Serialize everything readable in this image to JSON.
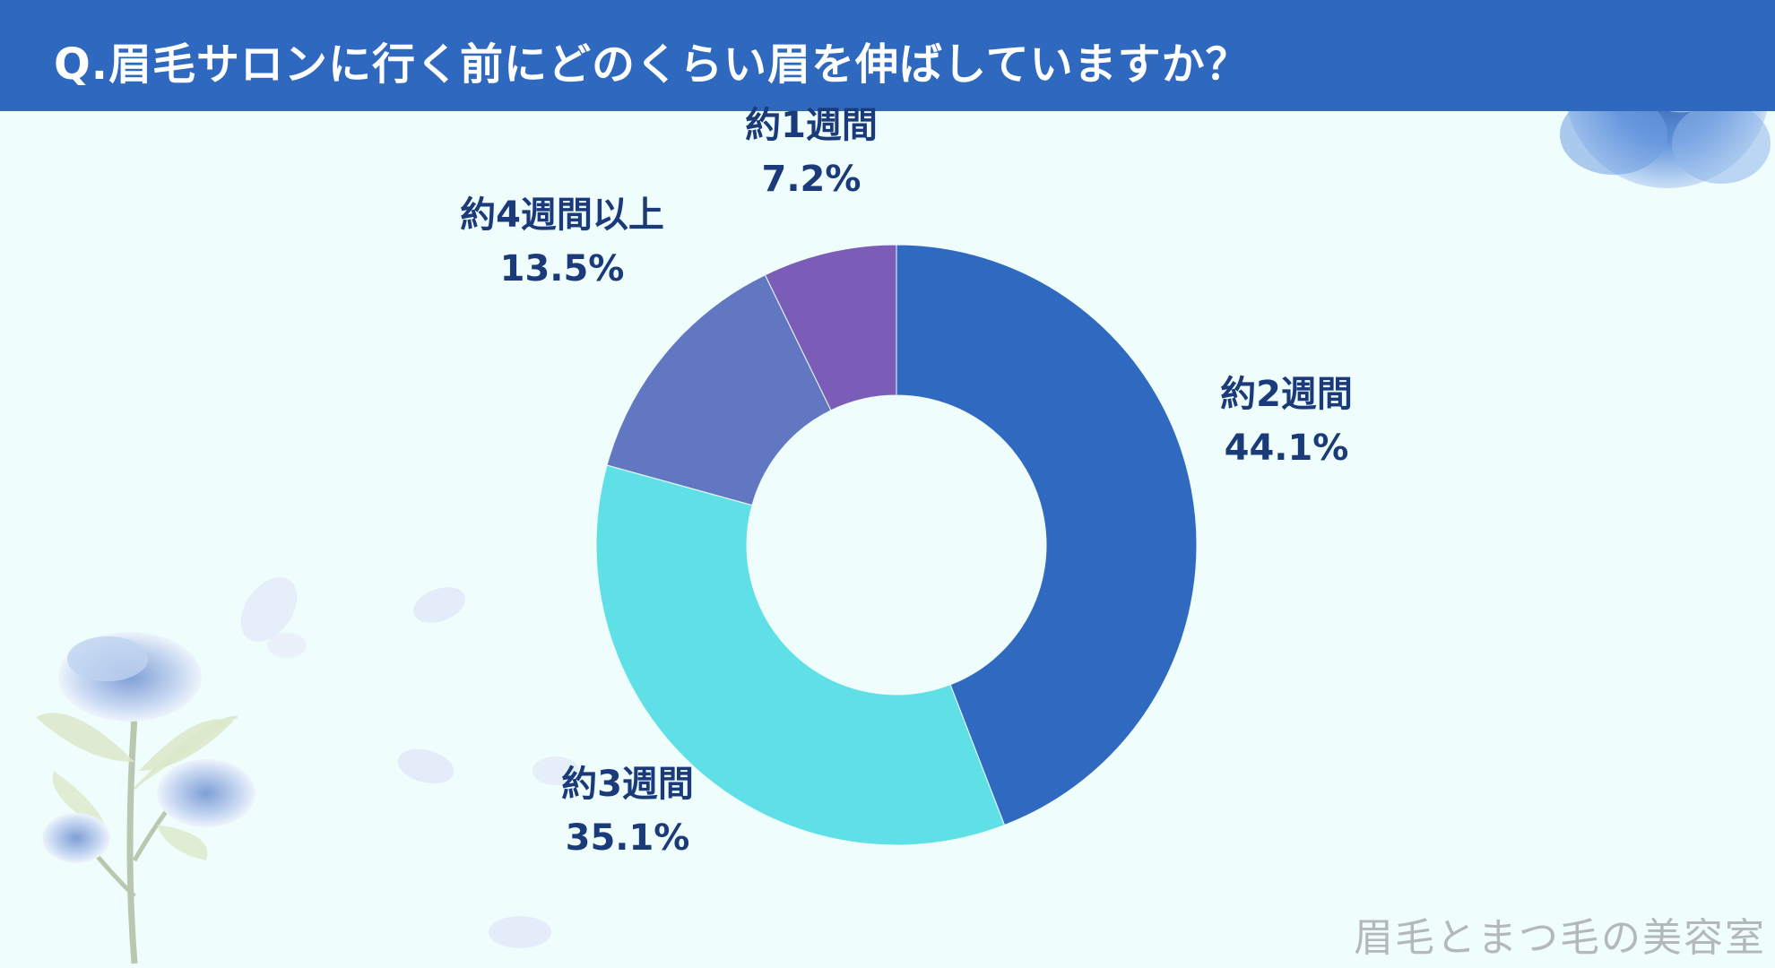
{
  "header": {
    "title": "Q.眉毛サロンに行く前にどのくらい眉を伸ばしていますか？",
    "background": "#2f68bf"
  },
  "chart_data": {
    "type": "pie",
    "donut": true,
    "title": "Q.眉毛サロンに行く前にどのくらい眉を伸ばしていますか？",
    "slices": [
      {
        "label": "約2週間",
        "value": 44.1,
        "display": "44.1%",
        "color": "#2f69c0"
      },
      {
        "label": "約3週間",
        "value": 35.1,
        "display": "35.1%",
        "color": "#5fe0e7"
      },
      {
        "label": "約4週間以上",
        "value": 13.5,
        "display": "13.5%",
        "color": "#6177c2"
      },
      {
        "label": "約1週間",
        "value": 7.2,
        "display": "7.2%",
        "color": "#7b5db8"
      }
    ]
  },
  "decorations": {
    "top_right": "blue-rose-icon",
    "bottom_left": "blue-rose-bouquet-icon"
  },
  "watermark": "眉毛とまつ毛の美容室"
}
